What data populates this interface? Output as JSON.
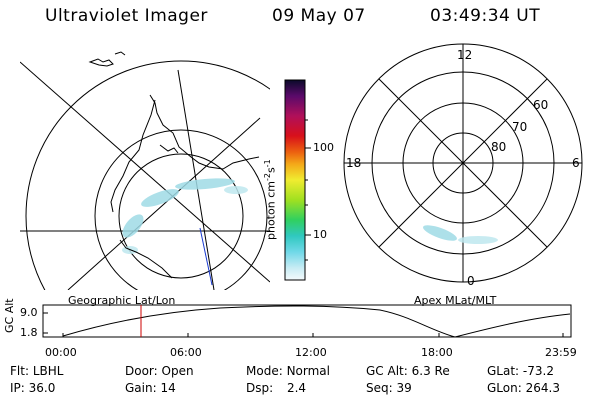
{
  "header": {
    "instrument": "Ultraviolet Imager",
    "date": "09 May 07",
    "time": "03:49:34 UT"
  },
  "left_map": {
    "title": "Geographic Lat/Lon"
  },
  "right_map": {
    "title": "Apex MLat/MLT",
    "mlt_labels": [
      "12",
      "18",
      "6",
      "0"
    ],
    "lat_labels": [
      "60",
      "70",
      "80"
    ]
  },
  "colorbar": {
    "unit_prefix": "photon cm",
    "unit_exp1": "-2",
    "unit_mid": "s",
    "unit_exp2": "-1",
    "ticks": [
      "100",
      "10"
    ]
  },
  "altitude_plot": {
    "ylabel": "GC Alt",
    "yticks": [
      "9.0",
      "1.8"
    ],
    "xticks": [
      "00:00",
      "06:00",
      "12:00",
      "18:00",
      "23:59"
    ],
    "current_time_color": "#cc0000"
  },
  "info": {
    "row1": [
      {
        "label": "Flt:",
        "value": "LBHL"
      },
      {
        "label": "Door:",
        "value": "Open"
      },
      {
        "label": "Mode:",
        "value": "Normal"
      },
      {
        "label": "GC Alt:",
        "value": "6.3 Re"
      },
      {
        "label": "GLat:",
        "value": "-73.2"
      }
    ],
    "row2": [
      {
        "label": "IP:",
        "value": "36.0"
      },
      {
        "label": "Gain:",
        "value": "14"
      },
      {
        "label": "Dsp:",
        "value": "2.4"
      },
      {
        "label": "Seq:",
        "value": "39"
      },
      {
        "label": "GLon:",
        "value": "264.3"
      }
    ]
  },
  "colors": {
    "aurora": "#7fd4e0",
    "colorbar": [
      "#0a0a2a",
      "#5a0a6a",
      "#a0106a",
      "#d01020",
      "#e86010",
      "#f4a010",
      "#f0e020",
      "#a0e020",
      "#30d060",
      "#30c0c0",
      "#60d0e0",
      "#c0e8f0",
      "#f0f8fc"
    ]
  }
}
